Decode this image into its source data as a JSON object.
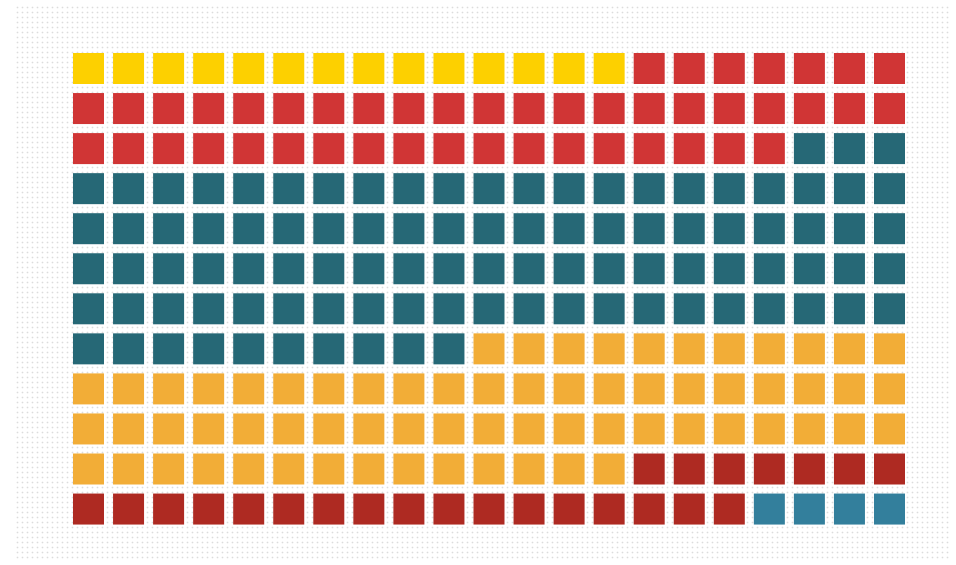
{
  "chart_data": {
    "type": "waffle",
    "series": [
      {
        "color": "#fdd000",
        "values": [
          14
        ]
      },
      {
        "color": "#d03535",
        "values": [
          46
        ]
      },
      {
        "color": "#266876",
        "values": [
          97
        ]
      },
      {
        "color": "#f2ad37",
        "values": [
          67
        ]
      },
      {
        "color": "#ae2a22",
        "values": [
          24
        ]
      },
      {
        "color": "#337f9c",
        "values": [
          4
        ]
      }
    ]
  }
}
